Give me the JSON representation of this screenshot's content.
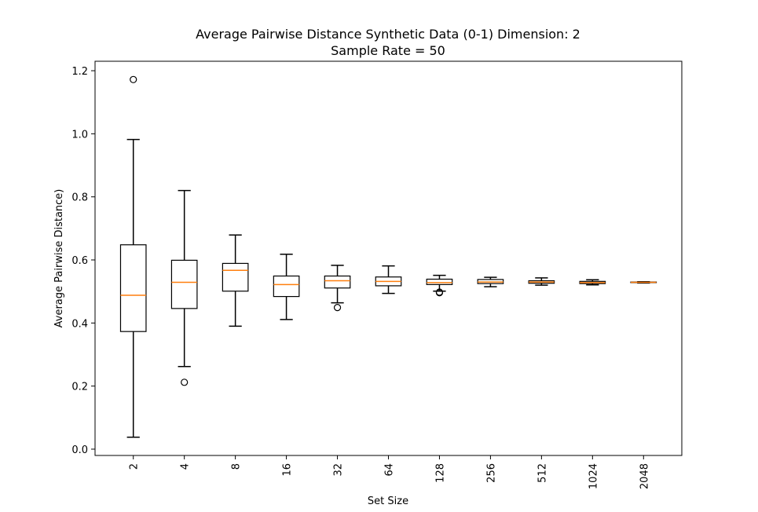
{
  "chart_data": {
    "type": "box",
    "title": "Average Pairwise Distance Synthetic Data (0-1) Dimension: 2",
    "subtitle": "Sample Rate = 50",
    "xlabel": "Set Size",
    "ylabel": "Average Pairwise Distance)",
    "ylim": [
      -0.02,
      1.23
    ],
    "yticks": [
      0.0,
      0.2,
      0.4,
      0.6,
      0.8,
      1.0,
      1.2
    ],
    "ytick_labels": [
      "0.0",
      "0.2",
      "0.4",
      "0.6",
      "0.8",
      "1.0",
      "1.2"
    ],
    "categories": [
      "2",
      "4",
      "8",
      "16",
      "32",
      "64",
      "128",
      "256",
      "512",
      "1024",
      "2048"
    ],
    "boxes": [
      {
        "whisker_low": 0.038,
        "q1": 0.373,
        "median": 0.488,
        "q3": 0.648,
        "whisker_high": 0.982,
        "outliers": [
          1.172
        ]
      },
      {
        "whisker_low": 0.262,
        "q1": 0.446,
        "median": 0.529,
        "q3": 0.599,
        "whisker_high": 0.82,
        "outliers": [
          0.212
        ]
      },
      {
        "whisker_low": 0.39,
        "q1": 0.501,
        "median": 0.567,
        "q3": 0.589,
        "whisker_high": 0.679,
        "outliers": []
      },
      {
        "whisker_low": 0.411,
        "q1": 0.484,
        "median": 0.522,
        "q3": 0.549,
        "whisker_high": 0.618,
        "outliers": []
      },
      {
        "whisker_low": 0.464,
        "q1": 0.511,
        "median": 0.534,
        "q3": 0.549,
        "whisker_high": 0.583,
        "outliers": [
          0.449
        ]
      },
      {
        "whisker_low": 0.494,
        "q1": 0.518,
        "median": 0.532,
        "q3": 0.546,
        "whisker_high": 0.581,
        "outliers": []
      },
      {
        "whisker_low": 0.501,
        "q1": 0.522,
        "median": 0.528,
        "q3": 0.539,
        "whisker_high": 0.551,
        "outliers": [
          0.496,
          0.498
        ]
      },
      {
        "whisker_low": 0.515,
        "q1": 0.525,
        "median": 0.53,
        "q3": 0.538,
        "whisker_high": 0.545,
        "outliers": []
      },
      {
        "whisker_low": 0.52,
        "q1": 0.526,
        "median": 0.53,
        "q3": 0.534,
        "whisker_high": 0.543,
        "outliers": []
      },
      {
        "whisker_low": 0.521,
        "q1": 0.525,
        "median": 0.528,
        "q3": 0.532,
        "whisker_high": 0.537,
        "outliers": []
      },
      {
        "whisker_low": 0.527,
        "q1": 0.528,
        "median": 0.529,
        "q3": 0.53,
        "whisker_high": 0.531,
        "outliers": []
      }
    ],
    "box_color": "#000000",
    "median_color": "#ff7f0e",
    "grid": false
  }
}
